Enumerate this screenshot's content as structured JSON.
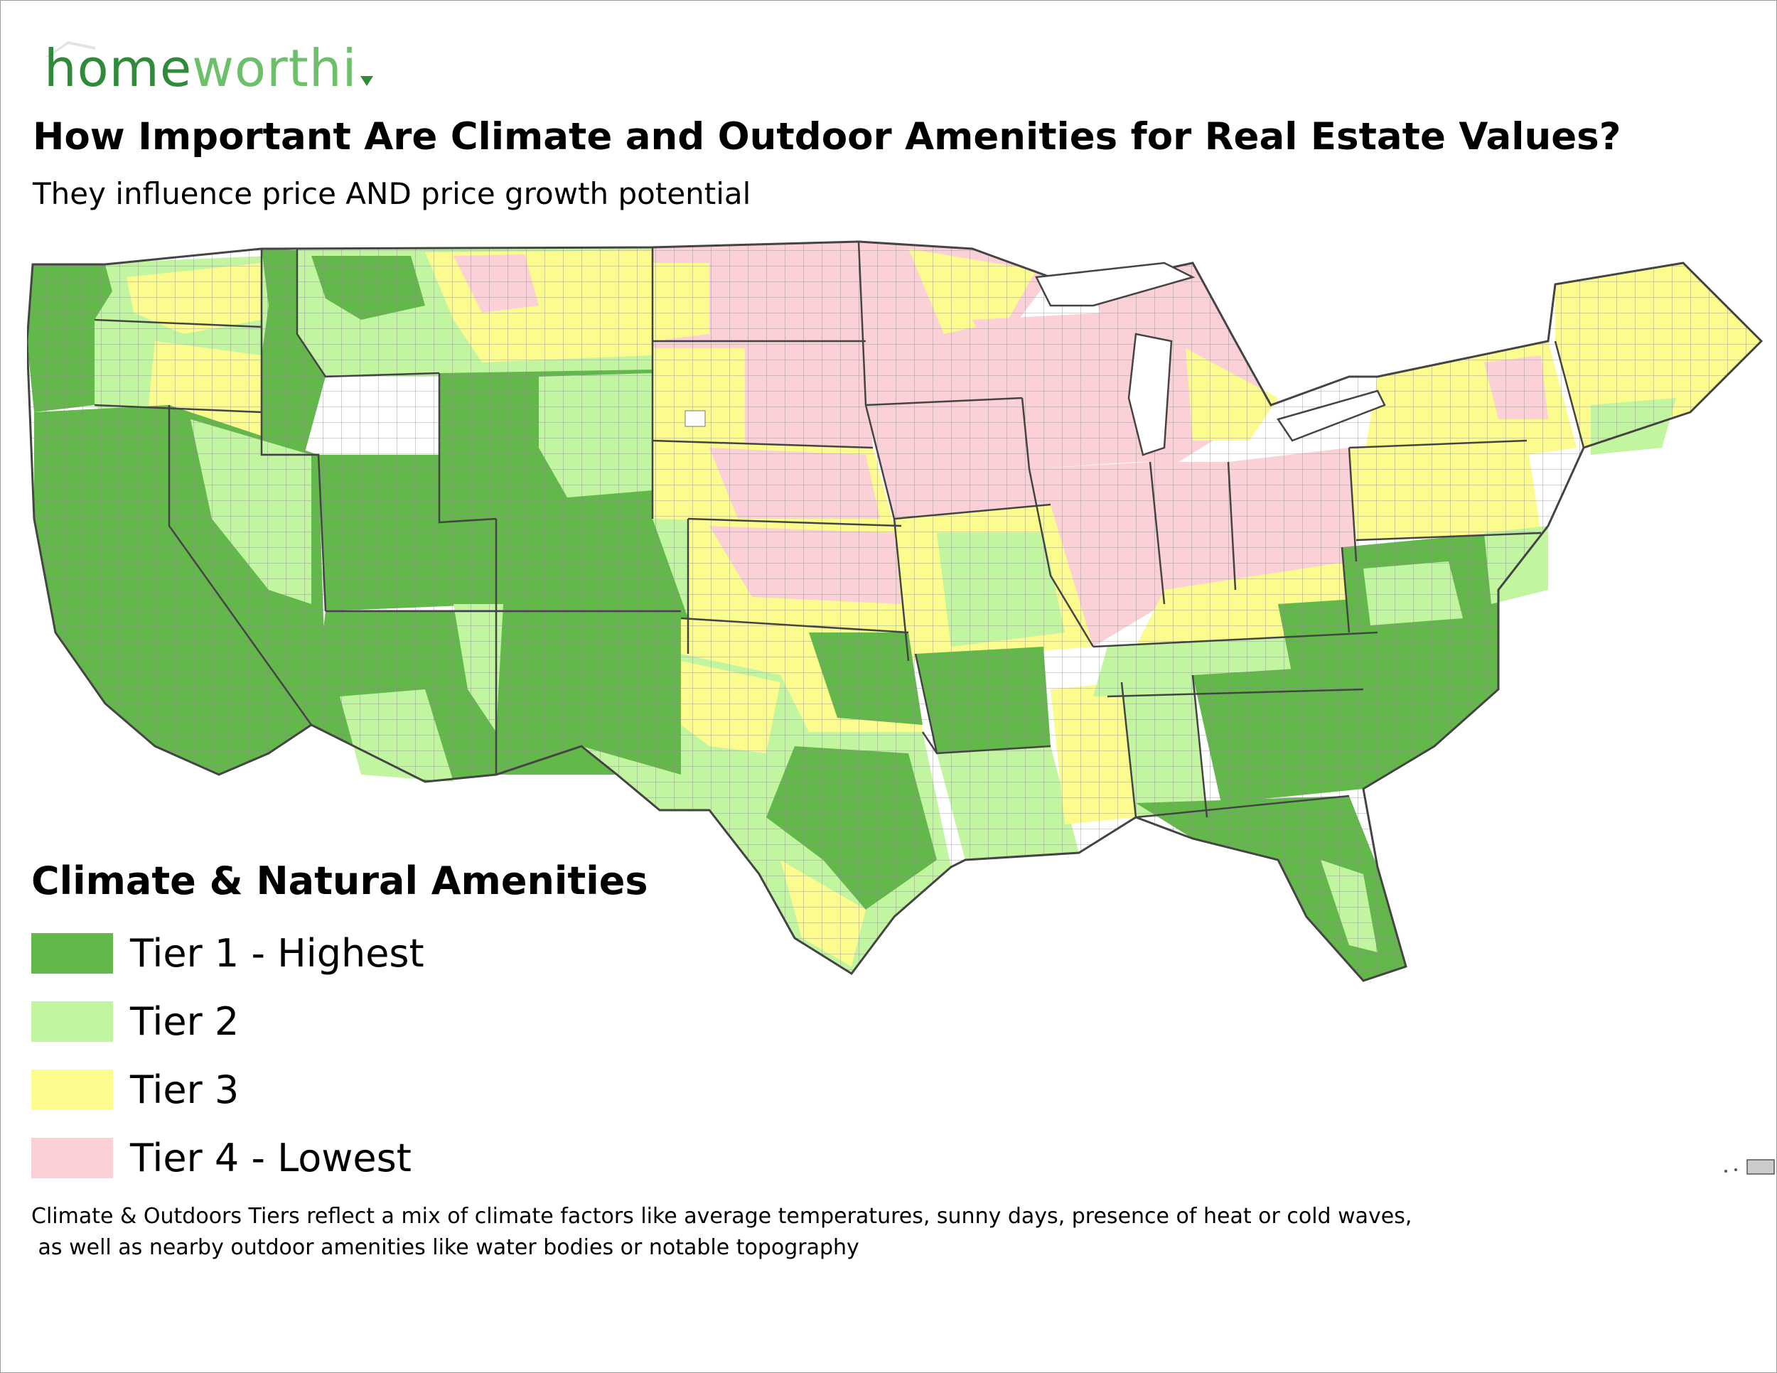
{
  "brand": {
    "part1": "home",
    "part2": "worthi"
  },
  "title": "How Important Are Climate and Outdoor Amenities for Real Estate Values?",
  "subtitle": "They influence price AND price growth potential",
  "legend": {
    "title": "Climate & Natural Amenities",
    "items": [
      {
        "label": "Tier 1 - Highest",
        "color": "#63b84a"
      },
      {
        "label": "Tier 2",
        "color": "#c2f5a0"
      },
      {
        "label": "Tier 3",
        "color": "#fbfb8e"
      },
      {
        "label": "Tier 4 - Lowest",
        "color": "#fcd0d7"
      }
    ]
  },
  "footnote": "Climate & Outdoors Tiers reflect a mix of climate factors like average temperatures, sunny days, presence of heat or cold waves,\n as well as nearby outdoor amenities like water bodies or notable topography",
  "map_style": {
    "border": "#444444",
    "county_line": "#777777"
  }
}
